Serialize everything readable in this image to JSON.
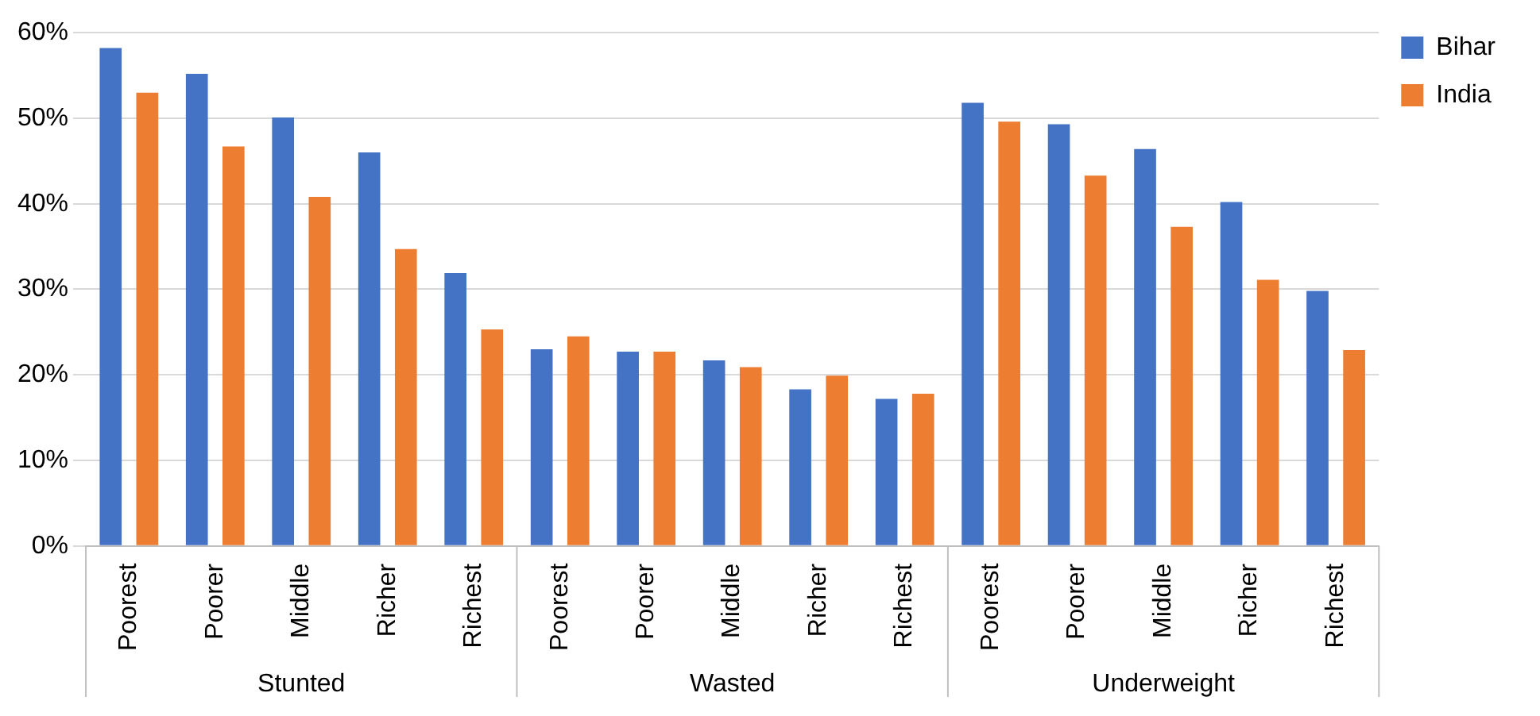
{
  "chart_data": {
    "type": "bar",
    "categories": [
      "Poorest",
      "Poorer",
      "Middle",
      "Richer",
      "Richest",
      "Poorest",
      "Poorer",
      "Middle",
      "Richer",
      "Richest",
      "Poorest",
      "Poorer",
      "Middle",
      "Richer",
      "Richest"
    ],
    "series": [
      {
        "name": "Bihar",
        "color": "#4472c4",
        "values": [
          58.2,
          55.2,
          50.1,
          46,
          31.9,
          23,
          22.7,
          21.7,
          18.3,
          17.2,
          51.8,
          49.3,
          46.4,
          40.2,
          29.8
        ]
      },
      {
        "name": "India",
        "color": "#ed7d31",
        "values": [
          53,
          46.7,
          40.8,
          34.7,
          25.3,
          24.5,
          22.7,
          20.9,
          19.9,
          17.8,
          49.6,
          43.3,
          37.3,
          31.1,
          22.9
        ]
      }
    ],
    "annotations": [
      "Stunted",
      "Wasted",
      "Underweight"
    ],
    "ylim": [
      0,
      60
    ],
    "yticks": [
      {
        "value": 0,
        "label": "0%"
      },
      {
        "value": 10,
        "label": "10%"
      },
      {
        "value": 20,
        "label": "20%"
      },
      {
        "value": 30,
        "label": "30%"
      },
      {
        "value": 40,
        "label": "40%"
      },
      {
        "value": 50,
        "label": "50%"
      },
      {
        "value": 60,
        "label": "60%"
      }
    ],
    "grid": "y",
    "legend": "right"
  }
}
